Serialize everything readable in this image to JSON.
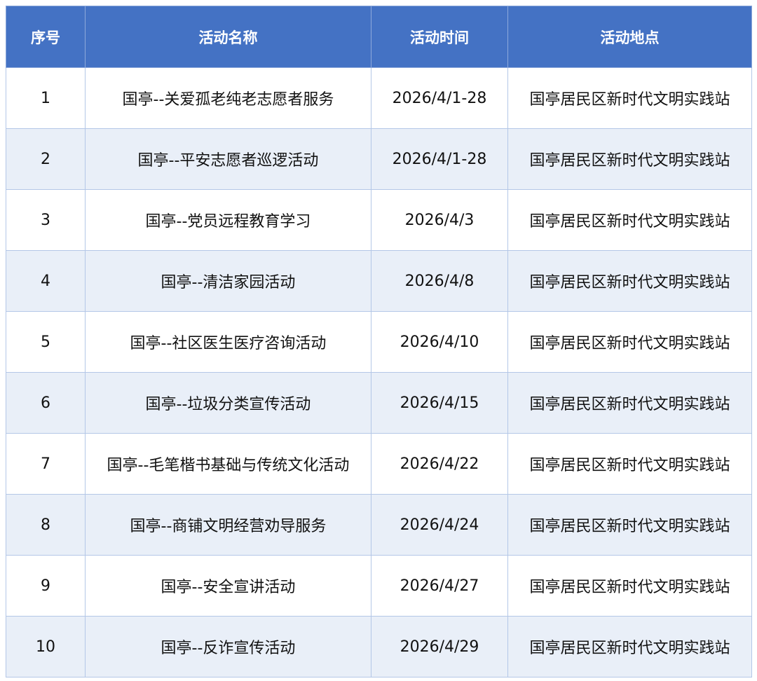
{
  "columns": [
    "序号",
    "活动名称",
    "活动时间",
    "活动地点"
  ],
  "colors": {
    "header_bg": "#4472C4",
    "alt_row_bg": "#E9EFF8",
    "border": "#B4C7E7"
  },
  "rows": [
    {
      "no": "1",
      "name": "国亭--关爱孤老纯老志愿者服务",
      "time": "2026/4/1-28",
      "place": "国亭居民区新时代文明实践站"
    },
    {
      "no": "2",
      "name": "国亭--平安志愿者巡逻活动",
      "time": "2026/4/1-28",
      "place": "国亭居民区新时代文明实践站"
    },
    {
      "no": "3",
      "name": "国亭--党员远程教育学习",
      "time": "2026/4/3",
      "place": "国亭居民区新时代文明实践站"
    },
    {
      "no": "4",
      "name": "国亭--清洁家园活动",
      "time": "2026/4/8",
      "place": "国亭居民区新时代文明实践站"
    },
    {
      "no": "5",
      "name": "国亭--社区医生医疗咨询活动",
      "time": "2026/4/10",
      "place": "国亭居民区新时代文明实践站"
    },
    {
      "no": "6",
      "name": "国亭--垃圾分类宣传活动",
      "time": "2026/4/15",
      "place": "国亭居民区新时代文明实践站"
    },
    {
      "no": "7",
      "name": "国亭--毛笔楷书基础与传统文化活动",
      "time": "2026/4/22",
      "place": "国亭居民区新时代文明实践站"
    },
    {
      "no": "8",
      "name": "国亭--商铺文明经营劝导服务",
      "time": "2026/4/24",
      "place": "国亭居民区新时代文明实践站"
    },
    {
      "no": "9",
      "name": "国亭--安全宣讲活动",
      "time": "2026/4/27",
      "place": "国亭居民区新时代文明实践站"
    },
    {
      "no": "10",
      "name": "国亭--反诈宣传活动",
      "time": "2026/4/29",
      "place": "国亭居民区新时代文明实践站"
    }
  ]
}
